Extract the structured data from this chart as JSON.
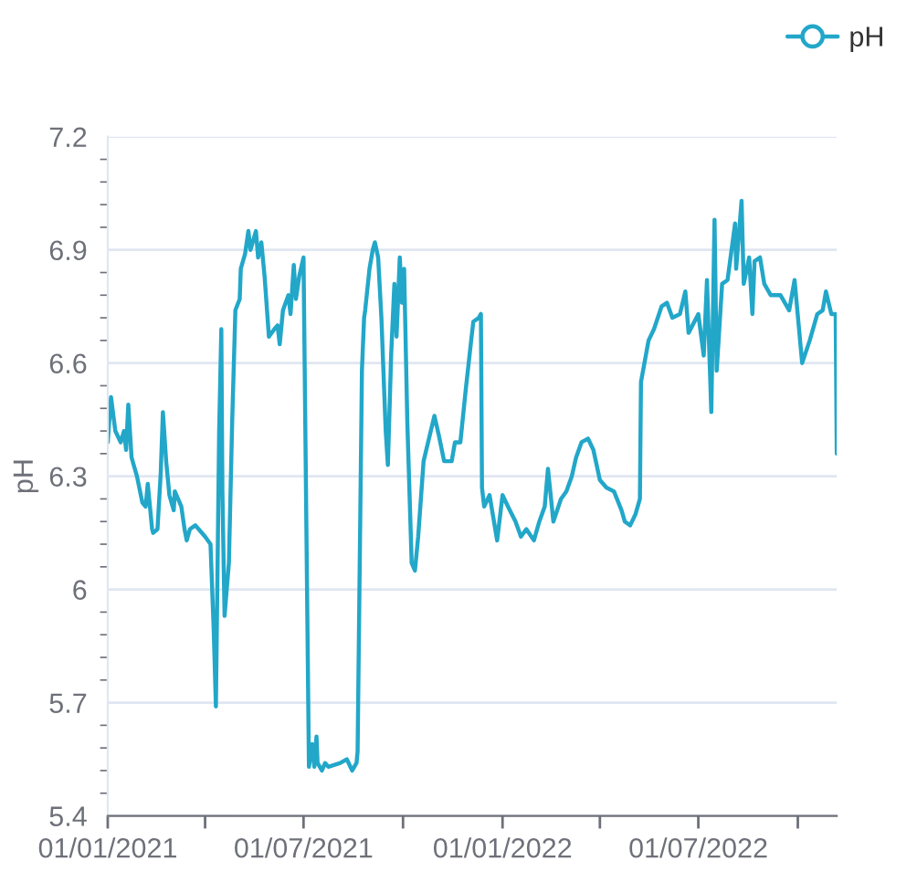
{
  "chart_data": {
    "type": "line",
    "ylabel": "pH",
    "legend": "top right",
    "grid": "y",
    "xlim": [
      "2021-01-01",
      "2022-11-06"
    ],
    "xticks": [
      {
        "value": "2021-01-01",
        "label": "01/01/2021"
      },
      {
        "value": "2021-04-01",
        "label": null
      },
      {
        "value": "2021-07-01",
        "label": "01/07/2021"
      },
      {
        "value": "2021-10-01",
        "label": null
      },
      {
        "value": "2022-01-01",
        "label": "01/01/2022"
      },
      {
        "value": "2022-04-01",
        "label": null
      },
      {
        "value": "2022-07-01",
        "label": "01/07/2022"
      },
      {
        "value": "2022-10-01",
        "label": null
      }
    ],
    "ylim": [
      5.4,
      7.2
    ],
    "yticks": [
      5.4,
      {
        "value": 5.46,
        "label": null
      },
      {
        "value": 5.52,
        "label": null
      },
      {
        "value": 5.58,
        "label": null
      },
      {
        "value": 5.64,
        "label": null
      },
      5.7,
      {
        "value": 5.76,
        "label": null
      },
      {
        "value": 5.82,
        "label": null
      },
      {
        "value": 5.88,
        "label": null
      },
      {
        "value": 5.94,
        "label": null
      },
      6,
      {
        "value": 6.06,
        "label": null
      },
      {
        "value": 6.12,
        "label": null
      },
      {
        "value": 6.18,
        "label": null
      },
      {
        "value": 6.24,
        "label": null
      },
      6.3,
      {
        "value": 6.36,
        "label": null
      },
      {
        "value": 6.42,
        "label": null
      },
      {
        "value": 6.48,
        "label": null
      },
      {
        "value": 6.54,
        "label": null
      },
      6.6,
      {
        "value": 6.66,
        "label": null
      },
      {
        "value": 6.72,
        "label": null
      },
      {
        "value": 6.78,
        "label": null
      },
      {
        "value": 6.84,
        "label": null
      },
      6.9,
      {
        "value": 6.96,
        "label": null
      },
      {
        "value": 7.02,
        "label": null
      },
      {
        "value": 7.08,
        "label": null
      },
      {
        "value": 7.14,
        "label": null
      },
      7.2
    ],
    "series": [
      {
        "name": "pH",
        "color": "#22a7c9",
        "x": [
          "2021-01-01",
          "2021-01-04",
          "2021-01-08",
          "2021-01-13",
          "2021-01-16",
          "2021-01-18",
          "2021-01-20",
          "2021-01-23",
          "2021-01-28",
          "2021-02-02",
          "2021-02-05",
          "2021-02-07",
          "2021-02-11",
          "2021-02-12",
          "2021-02-16",
          "2021-02-19",
          "2021-02-21",
          "2021-02-24",
          "2021-02-27",
          "2021-03-03",
          "2021-03-04",
          "2021-03-10",
          "2021-03-13",
          "2021-03-15",
          "2021-03-18",
          "2021-03-23",
          "2021-03-26",
          "2021-04-01",
          "2021-04-06",
          "2021-04-09",
          "2021-04-11",
          "2021-04-14",
          "2021-04-16",
          "2021-04-17",
          "2021-04-19",
          "2021-04-23",
          "2021-04-26",
          "2021-04-29",
          "2021-05-03",
          "2021-05-04",
          "2021-05-08",
          "2021-05-11",
          "2021-05-13",
          "2021-05-18",
          "2021-05-20",
          "2021-05-23",
          "2021-05-26",
          "2021-05-30",
          "2021-06-04",
          "2021-06-07",
          "2021-06-09",
          "2021-06-12",
          "2021-06-17",
          "2021-06-19",
          "2021-06-22",
          "2021-06-24",
          "2021-06-27",
          "2021-07-01",
          "2021-07-06",
          "2021-07-09",
          "2021-07-11",
          "2021-07-13",
          "2021-07-14",
          "2021-07-18",
          "2021-07-21",
          "2021-07-24",
          "2021-08-04",
          "2021-08-10",
          "2021-08-15",
          "2021-08-19",
          "2021-08-20",
          "2021-08-24",
          "2021-08-26",
          "2021-08-27",
          "2021-08-31",
          "2021-09-03",
          "2021-09-05",
          "2021-09-08",
          "2021-09-11",
          "2021-09-15",
          "2021-09-17",
          "2021-09-20",
          "2021-09-23",
          "2021-09-25",
          "2021-09-28",
          "2021-09-30",
          "2021-10-02",
          "2021-10-05",
          "2021-10-09",
          "2021-10-12",
          "2021-10-15",
          "2021-10-20",
          "2021-10-25",
          "2021-10-30",
          "2021-11-03",
          "2021-11-08",
          "2021-11-15",
          "2021-11-18",
          "2021-11-23",
          "2021-11-28",
          "2021-12-03",
          "2021-12-05",
          "2021-12-10",
          "2021-12-12",
          "2021-12-13",
          "2021-12-15",
          "2021-12-20",
          "2021-12-27",
          "2022-01-01",
          "2022-01-06",
          "2022-01-13",
          "2022-01-18",
          "2022-01-23",
          "2022-01-30",
          "2022-02-04",
          "2022-02-09",
          "2022-02-12",
          "2022-02-17",
          "2022-02-24",
          "2022-03-01",
          "2022-03-06",
          "2022-03-10",
          "2022-03-15",
          "2022-03-21",
          "2022-03-26",
          "2022-04-01",
          "2022-04-07",
          "2022-04-14",
          "2022-04-21",
          "2022-04-24",
          "2022-04-29",
          "2022-05-04",
          "2022-05-08",
          "2022-05-09",
          "2022-05-16",
          "2022-05-21",
          "2022-05-28",
          "2022-06-02",
          "2022-06-07",
          "2022-06-14",
          "2022-06-19",
          "2022-06-22",
          "2022-07-01",
          "2022-07-06",
          "2022-07-09",
          "2022-07-13",
          "2022-07-16",
          "2022-07-18",
          "2022-07-23",
          "2022-07-28",
          "2022-08-04",
          "2022-08-05",
          "2022-08-10",
          "2022-08-12",
          "2022-08-17",
          "2022-08-20",
          "2022-08-22",
          "2022-08-27",
          "2022-08-31",
          "2022-09-06",
          "2022-09-15",
          "2022-09-23",
          "2022-09-28",
          "2022-10-05",
          "2022-10-12",
          "2022-10-19",
          "2022-10-24",
          "2022-10-27",
          "2022-11-01",
          "2022-11-05",
          "2022-11-06"
        ],
        "values": [
          6.39,
          6.51,
          6.42,
          6.39,
          6.42,
          6.37,
          6.49,
          6.35,
          6.3,
          6.23,
          6.22,
          6.28,
          6.16,
          6.15,
          6.16,
          6.31,
          6.47,
          6.34,
          6.25,
          6.21,
          6.26,
          6.22,
          6.16,
          6.13,
          6.16,
          6.17,
          6.16,
          6.14,
          6.12,
          5.89,
          5.69,
          6.42,
          6.69,
          6.26,
          5.93,
          6.07,
          6.44,
          6.74,
          6.77,
          6.85,
          6.89,
          6.95,
          6.9,
          6.95,
          6.88,
          6.92,
          6.83,
          6.67,
          6.69,
          6.7,
          6.65,
          6.74,
          6.78,
          6.73,
          6.86,
          6.77,
          6.83,
          6.88,
          5.53,
          5.59,
          5.53,
          5.61,
          5.54,
          5.52,
          5.54,
          5.53,
          5.54,
          5.55,
          5.52,
          5.54,
          5.57,
          6.58,
          6.72,
          6.74,
          6.85,
          6.9,
          6.92,
          6.88,
          6.72,
          6.42,
          6.33,
          6.62,
          6.81,
          6.67,
          6.88,
          6.76,
          6.85,
          6.44,
          6.07,
          6.05,
          6.14,
          6.34,
          6.4,
          6.46,
          6.41,
          6.34,
          6.34,
          6.39,
          6.39,
          6.53,
          6.66,
          6.71,
          6.72,
          6.73,
          6.27,
          6.22,
          6.25,
          6.13,
          6.25,
          6.22,
          6.18,
          6.14,
          6.16,
          6.13,
          6.18,
          6.22,
          6.32,
          6.18,
          6.24,
          6.26,
          6.3,
          6.35,
          6.39,
          6.4,
          6.37,
          6.29,
          6.27,
          6.26,
          6.21,
          6.18,
          6.17,
          6.2,
          6.24,
          6.55,
          6.66,
          6.69,
          6.75,
          6.76,
          6.72,
          6.73,
          6.79,
          6.68,
          6.73,
          6.62,
          6.82,
          6.47,
          6.98,
          6.58,
          6.81,
          6.82,
          6.97,
          6.85,
          7.03,
          6.81,
          6.88,
          6.73,
          6.87,
          6.88,
          6.81,
          6.78,
          6.78,
          6.74,
          6.82,
          6.6,
          6.66,
          6.73,
          6.74,
          6.79,
          6.73,
          6.73,
          6.36
        ]
      }
    ]
  }
}
